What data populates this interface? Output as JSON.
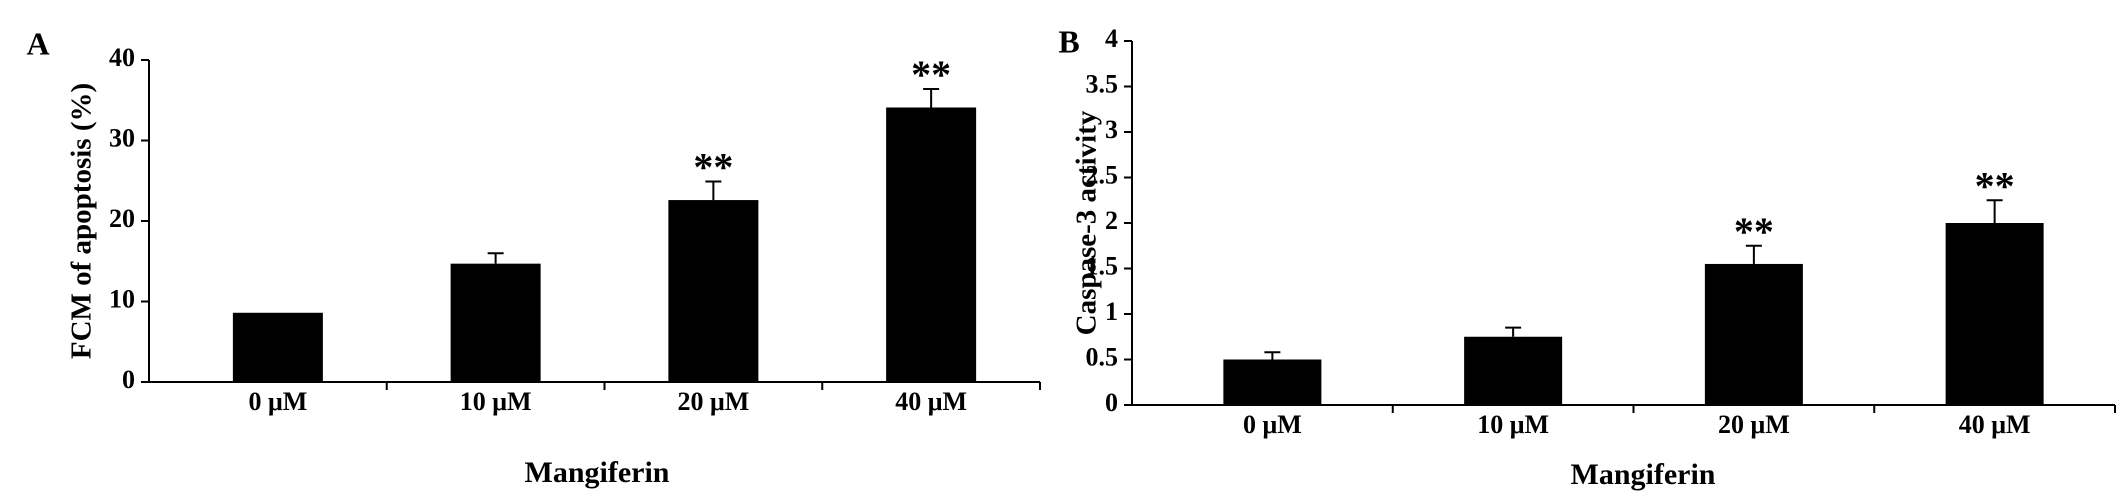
{
  "chart_data": [
    {
      "type": "bar",
      "panel": "A",
      "ylabel": "FCM of apoptosis (%)",
      "xlabel": "Mangiferin",
      "categories": [
        "0 μM",
        "10 μM",
        "20 μM",
        "40 μM"
      ],
      "values": [
        8.6,
        14.7,
        22.6,
        34.1
      ],
      "errors": [
        null,
        1.3,
        2.3,
        2.3
      ],
      "annotations": [
        null,
        null,
        "**",
        "**"
      ],
      "color": "#000000",
      "ylim": [
        0,
        40
      ],
      "yticks": [
        0,
        10,
        20,
        30,
        40
      ]
    },
    {
      "type": "bar",
      "panel": "B",
      "ylabel": "Caspase-3 activity",
      "xlabel": "Mangiferin",
      "categories": [
        "0 μM",
        "10 μM",
        "20 μM",
        "40 μM"
      ],
      "values": [
        0.5,
        0.75,
        1.55,
        2.0
      ],
      "errors": [
        0.08,
        0.1,
        0.2,
        0.25
      ],
      "annotations": [
        null,
        null,
        "**",
        "**"
      ],
      "color": "#000000",
      "ylim": [
        0,
        4
      ],
      "yticks": [
        0,
        0.5,
        1,
        1.5,
        2,
        2.5,
        3,
        3.5,
        4
      ]
    }
  ]
}
